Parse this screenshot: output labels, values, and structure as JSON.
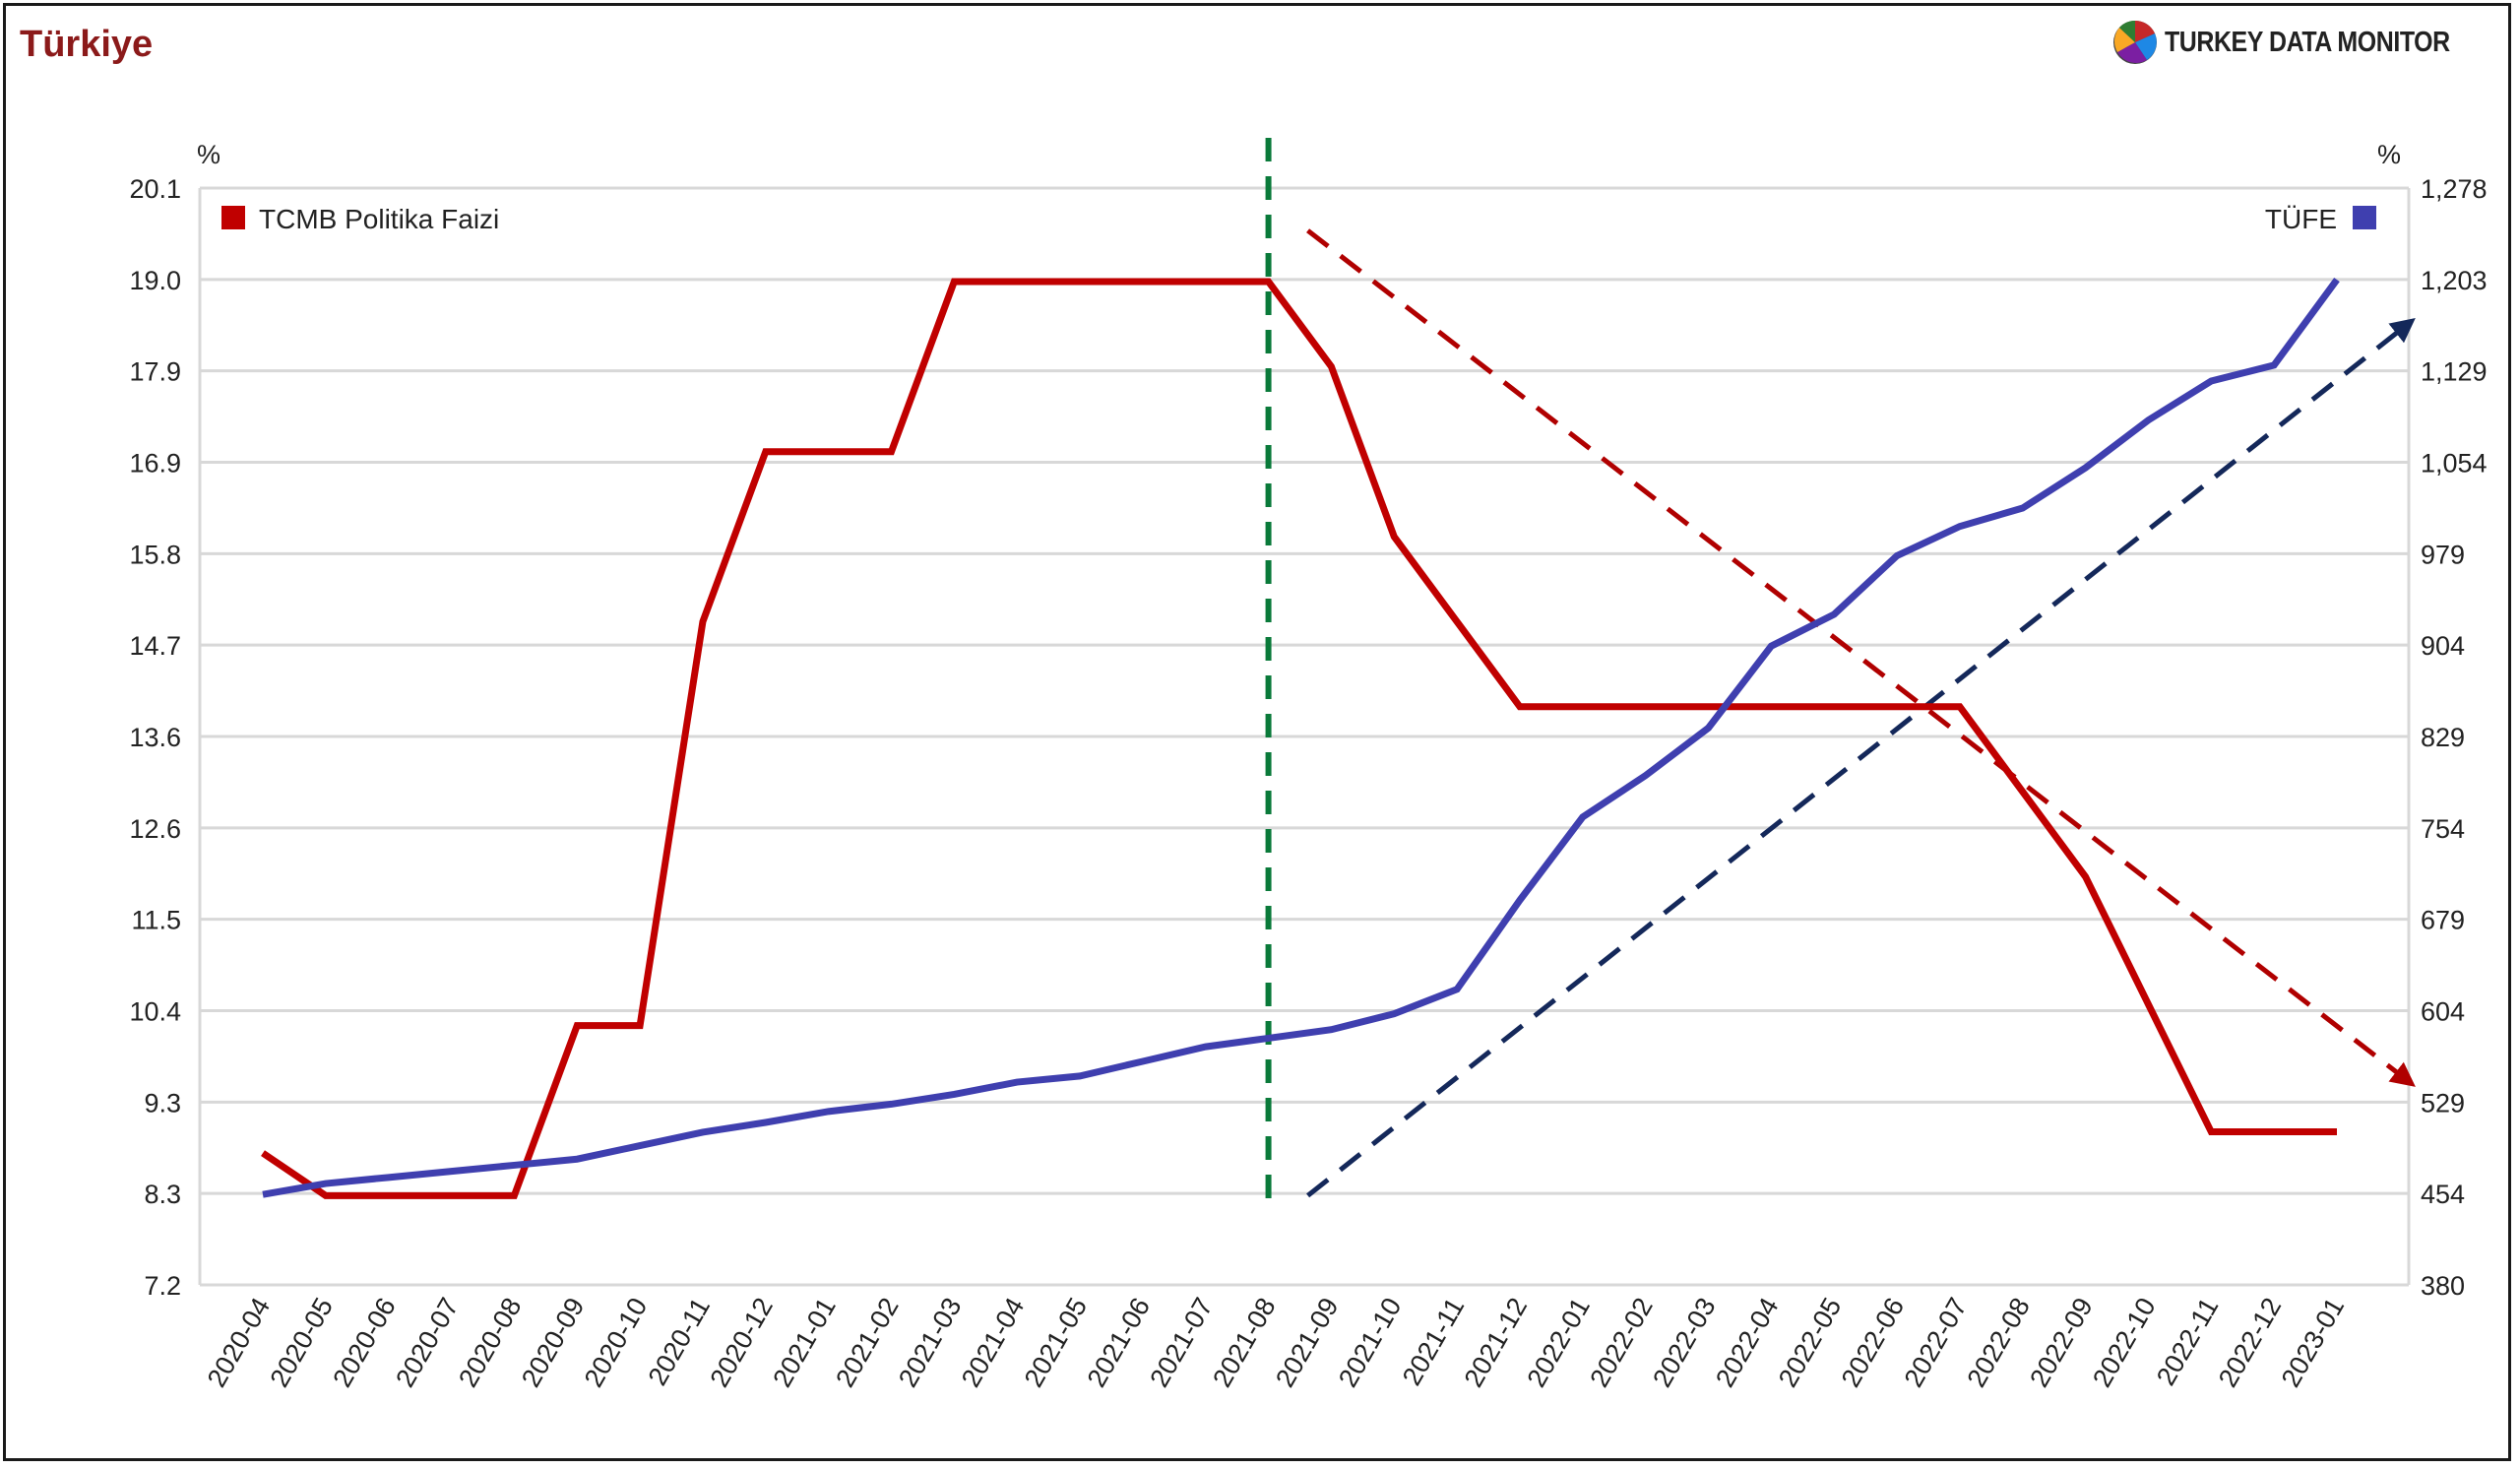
{
  "header": {
    "title": "Türkiye",
    "brand": "TURKEY DATA MONITOR"
  },
  "chart_data": {
    "type": "line",
    "categories": [
      "2020-04",
      "2020-05",
      "2020-06",
      "2020-07",
      "2020-08",
      "2020-09",
      "2020-10",
      "2020-11",
      "2020-12",
      "2021-01",
      "2021-02",
      "2021-03",
      "2021-04",
      "2021-05",
      "2021-06",
      "2021-07",
      "2021-08",
      "2021-09",
      "2021-10",
      "2021-11",
      "2021-12",
      "2022-01",
      "2022-02",
      "2022-03",
      "2022-04",
      "2022-05",
      "2022-06",
      "2022-07",
      "2022-08",
      "2022-09",
      "2022-10",
      "2022-11",
      "2022-12",
      "2023-01"
    ],
    "y_left": {
      "unit": "%",
      "ticks": [
        "20.1",
        "19.0",
        "17.9",
        "16.9",
        "15.8",
        "14.7",
        "13.6",
        "12.6",
        "11.5",
        "10.4",
        "9.3",
        "8.3",
        "7.2"
      ],
      "range": [
        7.2,
        20.1
      ]
    },
    "y_right": {
      "unit": "%",
      "ticks": [
        "1,278",
        "1,203",
        "1,129",
        "1,054",
        "979",
        "904",
        "829",
        "754",
        "679",
        "604",
        "529",
        "454",
        "380"
      ],
      "range": [
        380,
        1278
      ]
    },
    "series": [
      {
        "name": "TCMB Politika Faizi",
        "axis": "left",
        "color": "#c00000",
        "values": [
          8.75,
          8.25,
          8.25,
          8.25,
          8.25,
          10.25,
          10.25,
          15.0,
          17.0,
          17.0,
          17.0,
          19.0,
          19.0,
          19.0,
          19.0,
          19.0,
          19.0,
          18.0,
          16.0,
          15.0,
          14.0,
          14.0,
          14.0,
          14.0,
          14.0,
          14.0,
          14.0,
          14.0,
          13.0,
          12.0,
          10.5,
          9.0,
          9.0,
          9.0
        ]
      },
      {
        "name": "TÜFE",
        "axis": "right",
        "color": "#3f3faf",
        "values": [
          454,
          463,
          468,
          473,
          478,
          483,
          494,
          505,
          513,
          522,
          528,
          536,
          546,
          551,
          563,
          575,
          582,
          589,
          602,
          622,
          695,
          763,
          797,
          836,
          903,
          929,
          977,
          1001,
          1016,
          1049,
          1088,
          1120,
          1133,
          1203
        ]
      }
    ],
    "annotations": [
      {
        "kind": "vertical-dashed",
        "color": "#0a7a3a",
        "at": "2021-08"
      },
      {
        "kind": "trend-arrow",
        "color": "#b00000",
        "from": {
          "x": "2021-08",
          "y_left": 19.6
        },
        "to": {
          "x": "2023-01",
          "y_left": 9.6
        }
      },
      {
        "kind": "trend-arrow",
        "color": "#14285a",
        "from": {
          "x": "2021-08",
          "y_left": 8.25
        },
        "to": {
          "x": "2023-01",
          "y_left": 18.5
        }
      }
    ],
    "legend": [
      "top-left",
      "top-right"
    ],
    "grid": true
  }
}
